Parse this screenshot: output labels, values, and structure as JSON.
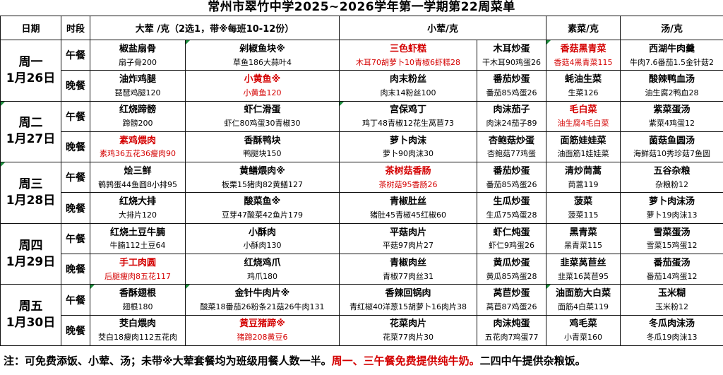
{
  "title": "常州市翠竹中学2025~2026学年第一学期第22周菜单",
  "colors": {
    "red": "#d40000",
    "marker_green": "#1e8f3e",
    "border": "#111111"
  },
  "header": {
    "date": "日期",
    "period": "时段",
    "big_meat": "大荤 /克（2选1，带※每班10-12份）",
    "small_meat": "小荤/克",
    "vegetable": "素菜/克",
    "soup": "汤/克"
  },
  "days": [
    {
      "weekday": "周一",
      "date": "1月26日",
      "meals": [
        {
          "period": "午餐",
          "cells": [
            {
              "name": "椒盐扇骨",
              "sub": "扇子骨200"
            },
            {
              "name": "剁椒鱼块※",
              "sub": "草鱼186大蒜叶4",
              "marker": true
            },
            {
              "name": "三色虾糕",
              "sub": "木耳70胡萝卜10青椒6虾糕28",
              "red": true
            },
            {
              "name": "木耳炒蛋",
              "sub": "干木耳90鸡蛋26"
            },
            {
              "name": "香菇黑青菜",
              "sub": "香菇4黑青菜115",
              "red": true,
              "marker": true
            },
            {
              "name": "西湖牛肉羹",
              "sub": "牛肉7.6番茄1.5金针菇2"
            }
          ]
        },
        {
          "period": "晚餐",
          "cells": [
            {
              "name": "油炸鸡腿",
              "sub": "琵琶鸡腿120"
            },
            {
              "name": "小黄鱼※",
              "sub": "小黄鱼120",
              "red": true
            },
            {
              "name": "肉末粉丝",
              "sub": "肉末14粉丝100"
            },
            {
              "name": "番茄炒蛋",
              "sub": "番茄85鸡蛋26"
            },
            {
              "name": "蚝油生菜",
              "sub": "生菜126"
            },
            {
              "name": "酸辣鸭血汤",
              "sub": "油生腐2鸭血28"
            }
          ]
        }
      ]
    },
    {
      "weekday": "周二",
      "date": "1月27日",
      "marker": true,
      "meals": [
        {
          "period": "午餐",
          "cells": [
            {
              "name": "红烧蹄髈",
              "sub": "蹄髈200"
            },
            {
              "name": "虾仁滑蛋",
              "sub": "虾仁80鸡蛋30青椒30"
            },
            {
              "name": "宫保鸡丁",
              "sub": "鸡丁48青椒12花生莴苣73",
              "marker": true
            },
            {
              "name": "肉沫茄子",
              "sub": "肉沫24茄子89"
            },
            {
              "name": "毛白菜",
              "sub": "油生腐4毛白菜",
              "red": true
            },
            {
              "name": "紫菜蛋汤",
              "sub": "紫菜4鸡蛋12"
            }
          ]
        },
        {
          "period": "晚餐",
          "cells": [
            {
              "name": "素鸡煨肉",
              "sub": "素鸡36五花36瘦肉90",
              "red": true
            },
            {
              "name": "香酥鸭块",
              "sub": "鸭腿块150"
            },
            {
              "name": "萝卜肉沫",
              "sub": "萝卜90肉沫30"
            },
            {
              "name": "杏鲍菇炒蛋",
              "sub": "杏鲍菇77鸡蛋"
            },
            {
              "name": "面筋娃娃菜",
              "sub": "油面筋1娃娃菜"
            },
            {
              "name": "菌菇鱼圆汤",
              "sub": "海鲜菇10秀珍菇7鱼圆"
            }
          ]
        }
      ]
    },
    {
      "weekday": "周三",
      "date": "1月28日",
      "marker": true,
      "meals": [
        {
          "period": "午餐",
          "cells": [
            {
              "name": "烩三鲜",
              "sub": "鹌鹑蛋44鱼圆8小排95"
            },
            {
              "name": "黄鳝煨肉※",
              "sub": "板栗15猪肉82黄鳝127"
            },
            {
              "name": "茶树菇香肠",
              "sub": "茶树菇95香肠26",
              "red": true
            },
            {
              "name": "番茄炒蛋",
              "sub": "番茄85鸡蛋26"
            },
            {
              "name": "清炒茼蒿",
              "sub": "茼蒿119"
            },
            {
              "name": "五谷杂粮",
              "sub": "杂粮粉12"
            }
          ]
        },
        {
          "period": "晚餐",
          "cells": [
            {
              "name": "红烧大排",
              "sub": "大排片120"
            },
            {
              "name": "酸菜鱼※",
              "sub": "豆芽47酸菜42鱼片179"
            },
            {
              "name": "青椒肚丝",
              "sub": "猪肚45青椒45红椒60"
            },
            {
              "name": "生瓜炒蛋",
              "sub": "生瓜75鸡蛋28"
            },
            {
              "name": "菠菜",
              "sub": "菠菜115"
            },
            {
              "name": "萝卜肉沫汤",
              "sub": "萝卜19肉沫13"
            }
          ]
        }
      ]
    },
    {
      "weekday": "周四",
      "date": "1月29日",
      "meals": [
        {
          "period": "午餐",
          "cells": [
            {
              "name": "红烧土豆牛腩",
              "sub": "牛腩112土豆64"
            },
            {
              "name": "小酥肉",
              "sub": "小酥肉130"
            },
            {
              "name": "平菇肉片",
              "sub": "平菇97肉片27"
            },
            {
              "name": "虾仁炖蛋",
              "sub": "虾仁9鸡蛋26"
            },
            {
              "name": "黑青菜",
              "sub": "黑青菜115"
            },
            {
              "name": "雪菜蛋汤",
              "sub": "雪菜15鸡蛋12"
            }
          ]
        },
        {
          "period": "晚餐",
          "cells": [
            {
              "name": "手工肉圆",
              "sub": "后腿瘦肉8五花117",
              "red": true
            },
            {
              "name": "红烧鸡爪",
              "sub": "鸡爪180"
            },
            {
              "name": "青椒肉丝",
              "sub": "青椒77肉丝31"
            },
            {
              "name": "黄瓜炒蛋",
              "sub": "黄瓜85鸡蛋28"
            },
            {
              "name": "韭菜莴苣丝",
              "sub": "韭菜16莴苣95"
            },
            {
              "name": "番茄蛋汤",
              "sub": "番茄14鸡蛋12"
            }
          ]
        }
      ]
    },
    {
      "weekday": "周五",
      "date": "1月30日",
      "meals": [
        {
          "period": "午餐",
          "cells": [
            {
              "name": "香酥翅根",
              "sub": "翅根180",
              "marker": true
            },
            {
              "name": "金针牛肉片※",
              "sub": "酸菜18番茄26粉条21菇26牛肉131",
              "marker": true
            },
            {
              "name": "香辣回锅肉",
              "sub": "青红椒40洋葱15胡萝卜16肉片38"
            },
            {
              "name": "莴苣炒蛋",
              "sub": "莴苣87鸡蛋26"
            },
            {
              "name": "油面筋大白菜",
              "sub": "面筋4白菜119",
              "marker": true
            },
            {
              "name": "玉米糊",
              "sub": "玉米粉12"
            }
          ]
        },
        {
          "period": "晚餐",
          "cells": [
            {
              "name": "茭白煨肉",
              "sub": "茭白18瘦肉112五花肉"
            },
            {
              "name": "黄豆猪蹄※",
              "sub": "猪蹄208黄豆6",
              "red": true
            },
            {
              "name": "花菜肉片",
              "sub": "花菜77肉片30"
            },
            {
              "name": "肉沫炖蛋",
              "sub": "五花肉7鸡蛋77"
            },
            {
              "name": "鸡毛菜",
              "sub": "小青菜160"
            },
            {
              "name": "冬瓜肉沫汤",
              "sub": "冬瓜19肉沫13"
            }
          ]
        }
      ]
    }
  ],
  "footer": {
    "note_black1": "注：可免费添饭、小荤、汤；未带※大荤套餐均为班级用餐人数一半。",
    "note_red": "周一、三午餐免费提供纯牛奶。",
    "note_black2": "二四中午提供杂粮饭。"
  }
}
